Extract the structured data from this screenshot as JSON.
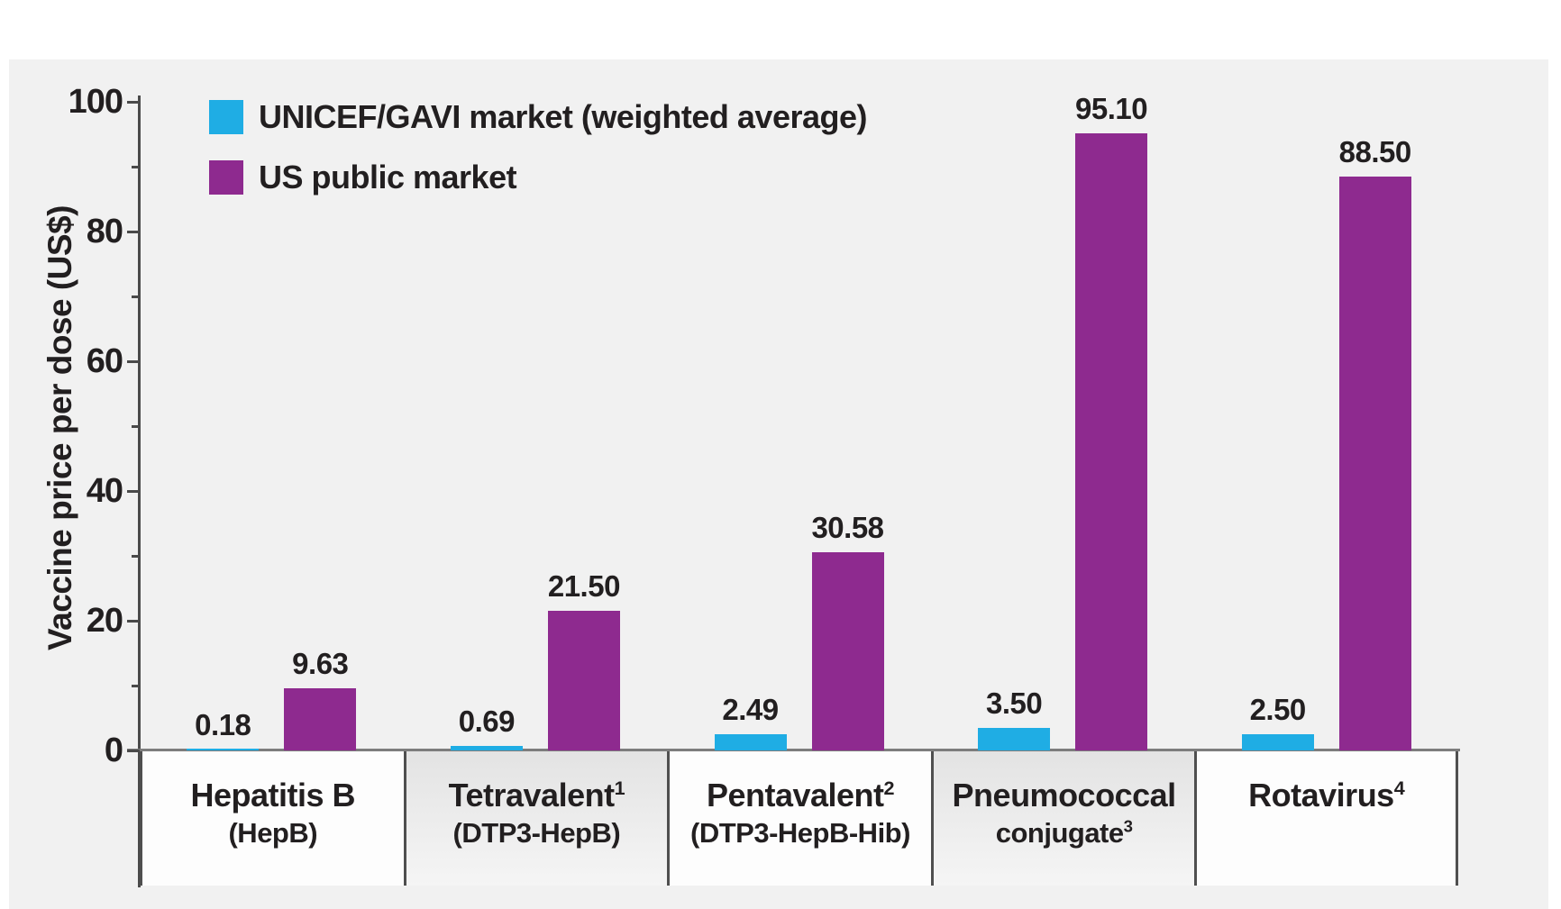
{
  "chart_data": {
    "type": "bar",
    "title": "",
    "xlabel": "",
    "ylabel": "Vaccine price per dose (US$)",
    "ylim": [
      0,
      100
    ],
    "yticks_major": [
      0,
      20,
      40,
      60,
      80,
      100
    ],
    "yticks_minor": [
      10,
      30,
      50,
      70,
      90
    ],
    "grid": false,
    "legend_position": "top-left",
    "categories": [
      {
        "key": "hepatitis-b",
        "shaded": false,
        "lines": [
          {
            "text": "Hepatitis B",
            "sup": ""
          },
          {
            "text": "(HepB)",
            "sup": ""
          }
        ]
      },
      {
        "key": "tetravalent",
        "shaded": true,
        "lines": [
          {
            "text": "Tetravalent",
            "sup": "1"
          },
          {
            "text": "(DTP3-HepB)",
            "sup": ""
          }
        ]
      },
      {
        "key": "pentavalent",
        "shaded": false,
        "lines": [
          {
            "text": "Pentavalent",
            "sup": "2"
          },
          {
            "text": "(DTP3-HepB-Hib)",
            "sup": ""
          }
        ]
      },
      {
        "key": "pneumococcal-conjugate",
        "shaded": true,
        "lines": [
          {
            "text": "Pneumococcal",
            "sup": ""
          },
          {
            "text": "conjugate",
            "sup": "3"
          }
        ]
      },
      {
        "key": "rotavirus",
        "shaded": false,
        "lines": [
          {
            "text": "Rotavirus",
            "sup": "4"
          }
        ]
      }
    ],
    "series": [
      {
        "key": "unicef-gavi",
        "name": "UNICEF/GAVI market (weighted average)",
        "color": "#1FADE4",
        "values": [
          0.18,
          0.69,
          2.49,
          3.5,
          2.5
        ],
        "value_labels": [
          "0.18",
          "0.69",
          "2.49",
          "3.50",
          "2.50"
        ]
      },
      {
        "key": "us-public",
        "name": "US public market",
        "color": "#8E2A8F",
        "values": [
          9.63,
          21.5,
          30.58,
          95.1,
          88.5
        ],
        "value_labels": [
          "9.63",
          "21.50",
          "30.58",
          "95.10",
          "88.50"
        ]
      }
    ]
  },
  "colors": {
    "unicef_gavi_bar": "#1FADE4",
    "us_public_bar": "#8E2A8F",
    "panel_background": "#F1F1F1",
    "axis_line": "#4A4A4A",
    "baseline": "#7D7D7D",
    "text": "#221F20"
  }
}
